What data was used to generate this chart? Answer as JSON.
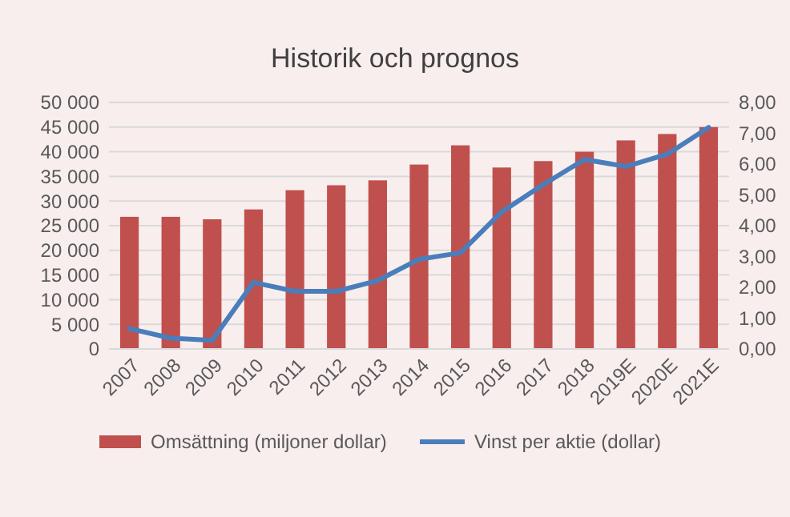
{
  "chart_data": {
    "type": "bar",
    "title": "Historik och prognos",
    "categories": [
      "2007",
      "2008",
      "2009",
      "2010",
      "2011",
      "2012",
      "2013",
      "2014",
      "2015",
      "2016",
      "2017",
      "2018",
      "2019E",
      "2020E",
      "2021E"
    ],
    "series": [
      {
        "name": "Omsättning (miljoner dollar)",
        "color": "#c0504d",
        "values": [
          26800,
          26800,
          26300,
          28300,
          32200,
          33200,
          34200,
          37400,
          41300,
          36800,
          38100,
          40000,
          42300,
          43600,
          45000
        ]
      },
      {
        "name": "Vinst per aktie (dollar)",
        "type": "line",
        "axis": "y2",
        "color": "#4a7ebb",
        "values": [
          0.66,
          0.35,
          0.28,
          2.16,
          1.87,
          1.87,
          2.22,
          2.91,
          3.12,
          4.45,
          5.33,
          6.15,
          5.92,
          6.32,
          7.19
        ]
      }
    ],
    "ylim": [
      0,
      50000
    ],
    "yticks": [
      {
        "value": 0,
        "label": "0"
      },
      {
        "value": 5000,
        "label": "5 000"
      },
      {
        "value": 10000,
        "label": "10 000"
      },
      {
        "value": 15000,
        "label": "15 000"
      },
      {
        "value": 20000,
        "label": "20 000"
      },
      {
        "value": 25000,
        "label": "25 000"
      },
      {
        "value": 30000,
        "label": "30 000"
      },
      {
        "value": 35000,
        "label": "35 000"
      },
      {
        "value": 40000,
        "label": "40 000"
      },
      {
        "value": 45000,
        "label": "45 000"
      },
      {
        "value": 50000,
        "label": "50 000"
      }
    ],
    "y2lim": [
      0,
      8
    ],
    "y2ticks": [
      {
        "value": 0,
        "label": "0,00"
      },
      {
        "value": 1,
        "label": "1,00"
      },
      {
        "value": 2,
        "label": "2,00"
      },
      {
        "value": 3,
        "label": "3,00"
      },
      {
        "value": 4,
        "label": "4,00"
      },
      {
        "value": 5,
        "label": "5,00"
      },
      {
        "value": 6,
        "label": "6,00"
      },
      {
        "value": 7,
        "label": "7,00"
      },
      {
        "value": 8,
        "label": "8,00"
      }
    ],
    "grid": "y",
    "legend": "bottom",
    "marker": "none",
    "line_style": "solid"
  }
}
